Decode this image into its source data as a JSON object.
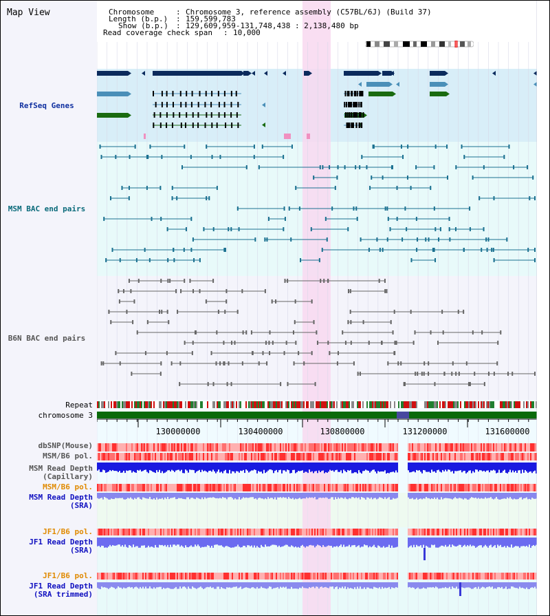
{
  "title": "Map View",
  "info": {
    "chromosome_label": "Chromosome",
    "chromosome_value": "Chromosome 3, reference assembly (C57BL/6J) (Build 37)",
    "length_label": "Length (b.p.)",
    "length_value": "159,599,783",
    "show_label": "Show (b.p.)",
    "show_value": "129,609,959-131,748,438 : 2,138,480 bp",
    "span_label": "Read coverage check span",
    "span_value": "10,000"
  },
  "tracks": {
    "refseq": "RefSeq Genes",
    "msm_bac": "MSM BAC end pairs",
    "b6n_bac": "B6N BAC end pairs",
    "repeat": "Repeat",
    "chromosome": "chromosome 3"
  },
  "axis": {
    "ticks": [
      "130000000",
      "130400000",
      "130800000",
      "131200000",
      "131600000"
    ]
  },
  "rows": {
    "dbsnp": "dbSNP(Mouse)",
    "msm_b6_pol": "MSM/B6 pol.",
    "msm_depth_cap_1": "MSM Read Depth",
    "msm_depth_cap_2": "(Capillary)",
    "msm_b6_pol_2": "MSM/B6 pol.",
    "msm_depth_sra_1": "MSM Read Depth",
    "msm_depth_sra_2": "(SRA)",
    "jf1_b6_pol": "JF1/B6 pol.",
    "jf1_depth_sra_1": "JF1 Read Depth",
    "jf1_depth_sra_2": "(SRA)",
    "jf1_b6_pol_2": "JF1/B6 pol.",
    "jf1_depth_trim_1": "JF1 Read Depth",
    "jf1_depth_trim_2": "(SRA trimmed)"
  },
  "colors": {
    "refseq_dark": "#0b2a5c",
    "refseq_light": "#4a8fb8",
    "refseq_green": "#1a6b10",
    "highlight": "#f8d8f0",
    "refseq_bg": "#d8eef8",
    "msm_bg": "#e8fafa",
    "b6n_bg": "#f4f4fb",
    "cap_label": "#444444",
    "msm_sra_label": "#e08a00",
    "blue_label": "#1010c0"
  }
}
